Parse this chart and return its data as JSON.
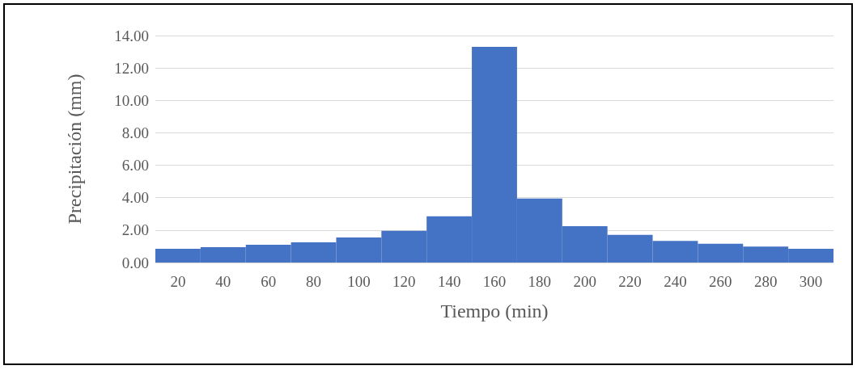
{
  "chart_data": {
    "type": "bar",
    "xlabel": "Tiempo (min)",
    "ylabel": "Precipitación (mm)",
    "categories": [
      "20",
      "40",
      "60",
      "80",
      "100",
      "120",
      "140",
      "160",
      "180",
      "200",
      "220",
      "240",
      "260",
      "280",
      "300"
    ],
    "values": [
      0.85,
      0.95,
      1.1,
      1.25,
      1.55,
      1.95,
      2.85,
      13.3,
      3.95,
      2.24,
      1.71,
      1.33,
      1.16,
      0.99,
      0.85
    ],
    "color": "#4472c4",
    "ylim": [
      0,
      14
    ],
    "yticks": [
      {
        "value": 0,
        "label": "0.00"
      },
      {
        "value": 2,
        "label": "2.00"
      },
      {
        "value": 4,
        "label": "4.00"
      },
      {
        "value": 6,
        "label": "6.00"
      },
      {
        "value": 8,
        "label": "8.00"
      },
      {
        "value": 10,
        "label": "10.00"
      },
      {
        "value": 12,
        "label": "12.00"
      },
      {
        "value": 14,
        "label": "14.00"
      }
    ],
    "grid": "y"
  }
}
